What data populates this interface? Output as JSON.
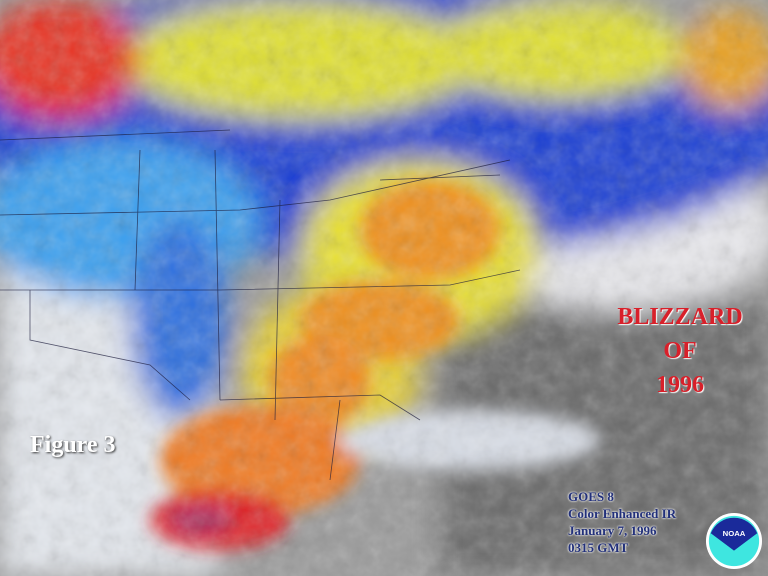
{
  "figure_label": "Figure 3",
  "title": {
    "line1": "BLIZZARD",
    "line2": "OF",
    "line3": "1996"
  },
  "info": {
    "satellite": "GOES 8",
    "product": "Color Enhanced IR",
    "date": "January 7, 1996",
    "time": "0315 GMT"
  },
  "logo": {
    "text": "NOAA"
  },
  "colors": {
    "cold_top_red": "#e02020",
    "orange": "#f09020",
    "yellow": "#e8e030",
    "blue": "#1a3ed8",
    "light_blue": "#3aa0f0",
    "title_red": "#d8202a",
    "info_text": "#22307a"
  }
}
